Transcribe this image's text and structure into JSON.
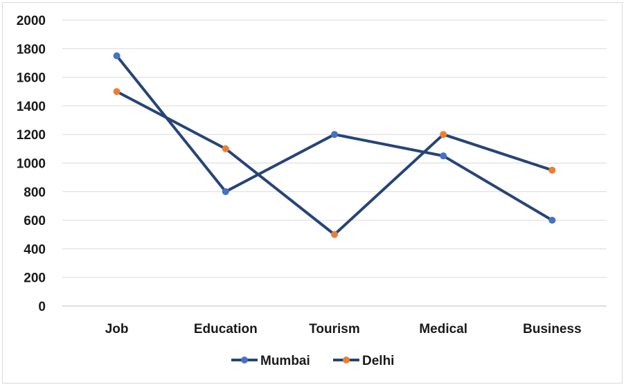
{
  "chart_data": {
    "type": "line",
    "title": "",
    "xlabel": "",
    "ylabel": "",
    "categories": [
      "Job",
      "Education",
      "Tourism",
      "Medical",
      "Business"
    ],
    "ylim": [
      0,
      2000
    ],
    "yticks": [
      0,
      200,
      400,
      600,
      800,
      1000,
      1200,
      1400,
      1600,
      1800,
      2000
    ],
    "grid": true,
    "legend": "bottom",
    "line_color": "#264478",
    "series": [
      {
        "name": "Mumbai",
        "marker_color": "#4472C4",
        "values": [
          1750,
          800,
          1200,
          1050,
          600
        ]
      },
      {
        "name": "Delhi",
        "marker_color": "#ED7D31",
        "values": [
          1500,
          1100,
          500,
          1200,
          950
        ]
      }
    ]
  }
}
